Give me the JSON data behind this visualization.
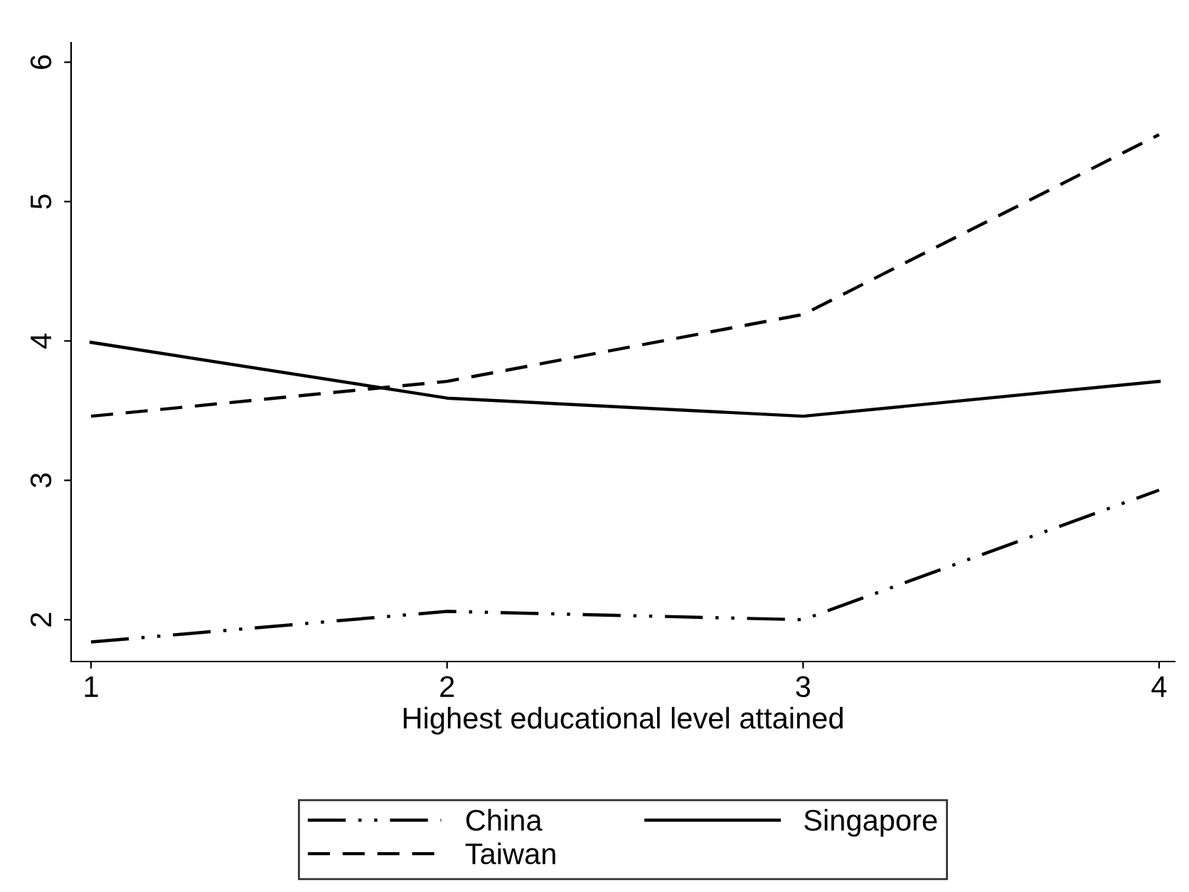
{
  "chart_data": {
    "type": "line",
    "xlabel": "Highest educational level attained",
    "x": [
      1,
      2,
      3,
      4
    ],
    "xlim": [
      0.944,
      4.044
    ],
    "xticks": [
      1,
      2,
      3,
      4
    ],
    "ylim": [
      1.7,
      6.14
    ],
    "yticks": [
      2,
      3,
      4,
      5,
      6
    ],
    "grid": false,
    "legend": "bottom",
    "marker": "none",
    "series": [
      {
        "name": "China",
        "color": "#000000",
        "line_style": "dashdotdot",
        "values": [
          1.84,
          2.06,
          2.0,
          2.93
        ]
      },
      {
        "name": "Taiwan",
        "color": "#000000",
        "line_style": "dashed",
        "values": [
          3.46,
          3.71,
          4.19,
          5.48
        ]
      },
      {
        "name": "Singapore",
        "color": "#000000",
        "line_style": "solid",
        "values": [
          3.99,
          3.59,
          3.46,
          3.71
        ]
      }
    ]
  }
}
